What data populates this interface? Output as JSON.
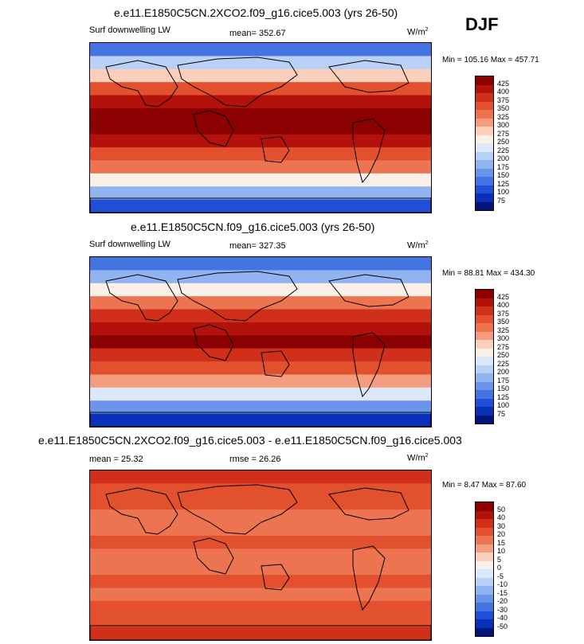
{
  "season": "DJF",
  "units_base": "W/m",
  "units_sup": "2",
  "panels": [
    {
      "title": "e.e11.E1850C5CN.2XCO2.f09_g16.cice5.003 (yrs 26-50)",
      "left_label": "Surf downwelling LW",
      "stat1": "mean= 352.67",
      "stat2": "",
      "minmax": "Min = 105.16 Max = 457.71",
      "scale_labels": [
        "425",
        "400",
        "375",
        "350",
        "325",
        "300",
        "275",
        "250",
        "225",
        "200",
        "175",
        "150",
        "125",
        "100",
        "75"
      ],
      "scale_colors": [
        "#8b0000",
        "#b3120b",
        "#d0301a",
        "#e2502e",
        "#ec7450",
        "#f49c7e",
        "#fad0bd",
        "#fbf0e7",
        "#dce8fa",
        "#b9d1f6",
        "#90b4f0",
        "#6a94ea",
        "#4473e2",
        "#1e4fd6",
        "#0a2fb8",
        "#02137a"
      ],
      "mean_value": 352.67
    },
    {
      "title": "e.e11.E1850C5CN.f09_g16.cice5.003 (yrs 26-50)",
      "left_label": "Surf downwelling LW",
      "stat1": "mean= 327.35",
      "stat2": "",
      "minmax": "Min =  88.81 Max = 434.30",
      "scale_labels": [
        "425",
        "400",
        "375",
        "350",
        "325",
        "300",
        "275",
        "250",
        "225",
        "200",
        "175",
        "150",
        "125",
        "100",
        "75"
      ],
      "scale_colors": [
        "#8b0000",
        "#b3120b",
        "#d0301a",
        "#e2502e",
        "#ec7450",
        "#f49c7e",
        "#fad0bd",
        "#fbf0e7",
        "#dce8fa",
        "#b9d1f6",
        "#90b4f0",
        "#6a94ea",
        "#4473e2",
        "#1e4fd6",
        "#0a2fb8",
        "#02137a"
      ],
      "mean_value": 327.35
    },
    {
      "title": "e.e11.E1850C5CN.2XCO2.f09_g16.cice5.003 - e.e11.E1850C5CN.f09_g16.cice5.003",
      "left_label": "mean =  25.32",
      "stat1": "rmse =  26.26",
      "stat2": "",
      "minmax": "Min =   8.47 Max = 87.60",
      "scale_labels": [
        "50",
        "40",
        "30",
        "20",
        "15",
        "10",
        "5",
        "0",
        "-5",
        "-10",
        "-15",
        "-20",
        "-30",
        "-40",
        "-50"
      ],
      "scale_colors": [
        "#8b0000",
        "#b3120b",
        "#d0301a",
        "#e2502e",
        "#ec7450",
        "#f49c7e",
        "#fad0bd",
        "#fbf0e7",
        "#dce8fa",
        "#b9d1f6",
        "#90b4f0",
        "#6a94ea",
        "#4473e2",
        "#1e4fd6",
        "#0a2fb8",
        "#02137a"
      ],
      "mean_value": 25.32
    }
  ]
}
